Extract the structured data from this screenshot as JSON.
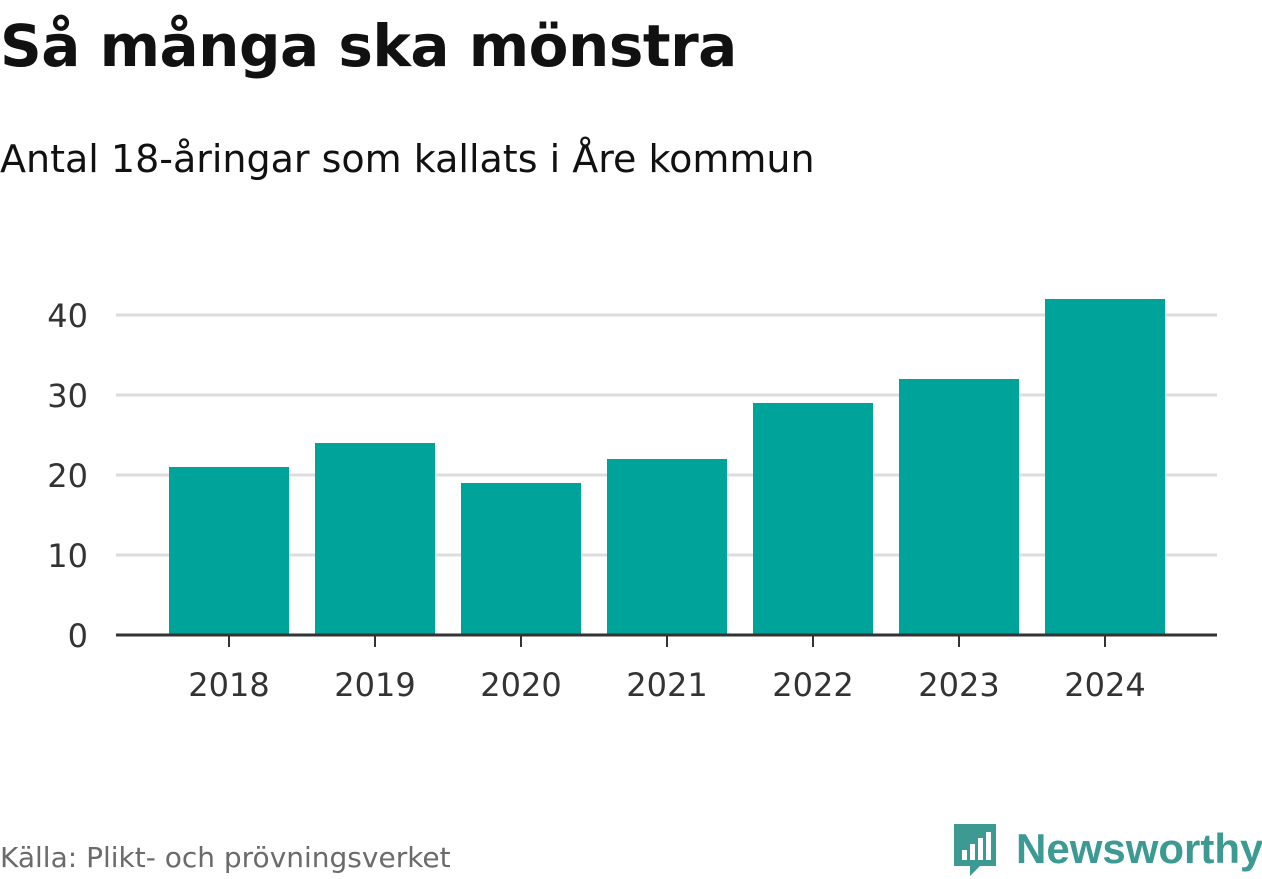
{
  "header": {
    "title": "Så många ska mönstra",
    "subtitle": "Antal 18-åringar som kallats i Åre kommun"
  },
  "footer": {
    "source": "Källa: Plikt- och prövningsverket",
    "brand": "Newsworthy",
    "brand_icon": "newsworthy-logo-icon"
  },
  "colors": {
    "bar": "#00a39a",
    "grid": "#dddddd",
    "axis": "#333333",
    "brand": "#3c9a93"
  },
  "chart_data": {
    "type": "bar",
    "title": "Så många ska mönstra",
    "subtitle": "Antal 18-åringar som kallats i Åre kommun",
    "categories": [
      "2018",
      "2019",
      "2020",
      "2021",
      "2022",
      "2023",
      "2024"
    ],
    "values": [
      21,
      24,
      19,
      22,
      29,
      32,
      42
    ],
    "xlabel": "",
    "ylabel": "",
    "ylim": [
      0,
      42
    ],
    "yticks": [
      0,
      10,
      20,
      30,
      40
    ],
    "grid": true,
    "legend": "none"
  }
}
